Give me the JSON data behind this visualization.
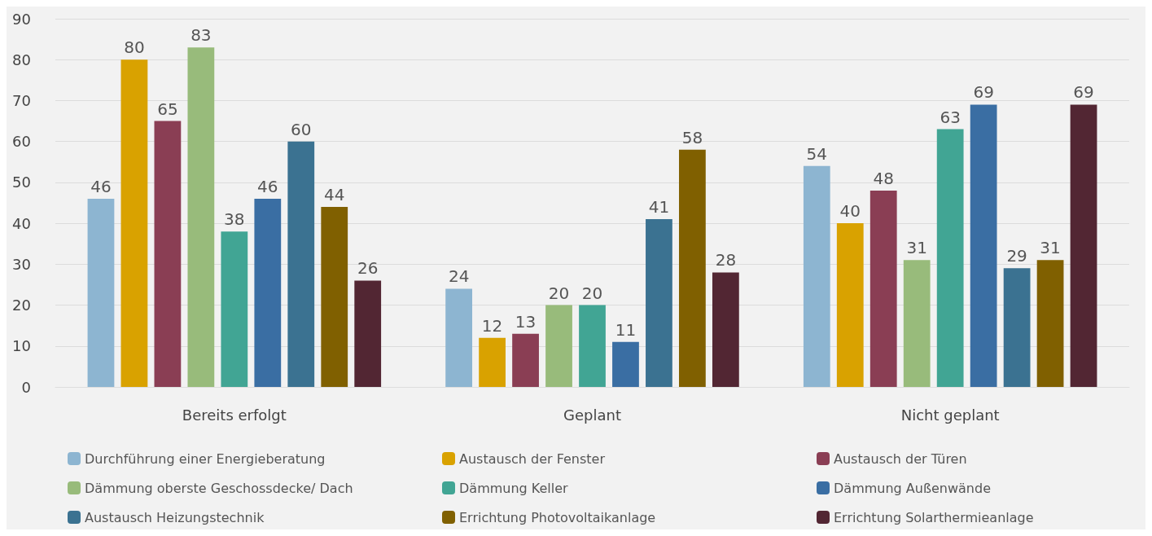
{
  "chart_data": {
    "type": "bar",
    "categories": [
      "Bereits erfolgt",
      "Geplant",
      "Nicht geplant"
    ],
    "series": [
      {
        "name": "Durchführung einer Energieberatung",
        "color": "#8db5d1",
        "values": [
          46,
          24,
          54
        ]
      },
      {
        "name": "Austausch der Fenster",
        "color": "#d9a200",
        "values": [
          80,
          12,
          40
        ]
      },
      {
        "name": "Austausch der Türen",
        "color": "#8a3e54",
        "values": [
          65,
          13,
          48
        ]
      },
      {
        "name": "Dämmung oberste Geschossdecke/ Dach",
        "color": "#98bb7b",
        "values": [
          83,
          20,
          31
        ]
      },
      {
        "name": "Dämmung Keller",
        "color": "#41a594",
        "values": [
          38,
          20,
          63
        ]
      },
      {
        "name": "Dämmung Außenwände",
        "color": "#3a6ea3",
        "values": [
          46,
          11,
          69
        ]
      },
      {
        "name": "Austausch Heizungstechnik",
        "color": "#3b7291",
        "values": [
          60,
          41,
          29
        ]
      },
      {
        "name": "Errichtung Photovoltaikanlage",
        "color": "#806000",
        "values": [
          44,
          58,
          31
        ]
      },
      {
        "name": "Errichtung Solarthermieanlage",
        "color": "#522633",
        "values": [
          26,
          28,
          69
        ]
      }
    ],
    "ylim": [
      0,
      90
    ],
    "yticks": [
      0,
      10,
      20,
      30,
      40,
      50,
      60,
      70,
      80,
      90
    ],
    "grid": "y",
    "legend": "bottom",
    "data_labels": true
  }
}
